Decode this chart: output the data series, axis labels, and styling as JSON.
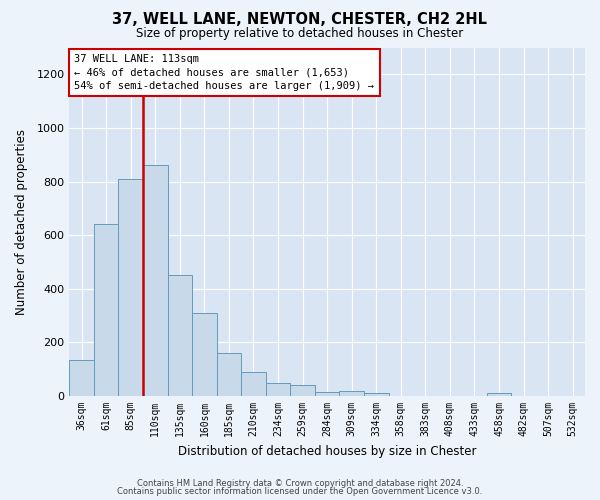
{
  "title": "37, WELL LANE, NEWTON, CHESTER, CH2 2HL",
  "subtitle": "Size of property relative to detached houses in Chester",
  "xlabel": "Distribution of detached houses by size in Chester",
  "ylabel": "Number of detached properties",
  "annotation_line1": "37 WELL LANE: 113sqm",
  "annotation_line2": "← 46% of detached houses are smaller (1,653)",
  "annotation_line3": "54% of semi-detached houses are larger (1,909) →",
  "bar_color": "#c8d9ea",
  "bar_edge_color": "#6699bb",
  "vline_color": "#cc0000",
  "annotation_box_edge_color": "#cc0000",
  "annotation_box_fill": "white",
  "background_color": "#edf3fb",
  "plot_bg_color": "#dae5f4",
  "footer_line1": "Contains HM Land Registry data © Crown copyright and database right 2024.",
  "footer_line2": "Contains public sector information licensed under the Open Government Licence v3.0.",
  "categories": [
    "36sqm",
    "61sqm",
    "85sqm",
    "110sqm",
    "135sqm",
    "160sqm",
    "185sqm",
    "210sqm",
    "234sqm",
    "259sqm",
    "284sqm",
    "309sqm",
    "334sqm",
    "358sqm",
    "383sqm",
    "408sqm",
    "433sqm",
    "458sqm",
    "482sqm",
    "507sqm",
    "532sqm"
  ],
  "values": [
    135,
    640,
    810,
    860,
    450,
    310,
    160,
    90,
    50,
    40,
    15,
    18,
    12,
    0,
    0,
    0,
    0,
    10,
    0,
    0,
    0
  ],
  "ylim": [
    0,
    1300
  ],
  "yticks": [
    0,
    200,
    400,
    600,
    800,
    1000,
    1200
  ],
  "vline_x_index": 3,
  "bar_width": 1.0
}
